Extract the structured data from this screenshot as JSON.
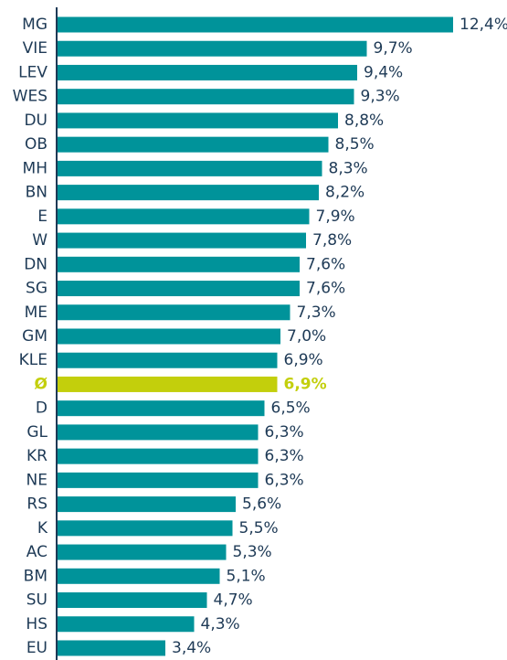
{
  "chart_data": {
    "type": "bar",
    "orientation": "horizontal",
    "categories": [
      "MG",
      "VIE",
      "LEV",
      "WES",
      "DU",
      "OB",
      "MH",
      "BN",
      "E",
      "W",
      "DN",
      "SG",
      "ME",
      "GM",
      "KLE",
      "Ø",
      "D",
      "GL",
      "KR",
      "NE",
      "RS",
      "K",
      "AC",
      "BM",
      "SU",
      "HS",
      "EU"
    ],
    "values": [
      12.4,
      9.7,
      9.4,
      9.3,
      8.8,
      8.5,
      8.3,
      8.2,
      7.9,
      7.8,
      7.6,
      7.6,
      7.3,
      7.0,
      6.9,
      6.9,
      6.5,
      6.3,
      6.3,
      6.3,
      5.6,
      5.5,
      5.3,
      5.1,
      4.7,
      4.3,
      3.4
    ],
    "value_labels": [
      "12,4%",
      "9,7%",
      "9,4%",
      "9,3%",
      "8,8%",
      "8,5%",
      "8,3%",
      "8,2%",
      "7,9%",
      "7,8%",
      "7,6%",
      "7,6%",
      "7,3%",
      "7,0%",
      "6,9%",
      "6,9%",
      "6,5%",
      "6,3%",
      "6,3%",
      "6,3%",
      "5,6%",
      "5,5%",
      "5,3%",
      "5,1%",
      "4,7%",
      "4,3%",
      "3,4%"
    ],
    "colors": [
      "#00939a",
      "#00939a",
      "#00939a",
      "#00939a",
      "#00939a",
      "#00939a",
      "#00939a",
      "#00939a",
      "#00939a",
      "#00939a",
      "#00939a",
      "#00939a",
      "#00939a",
      "#00939a",
      "#00939a",
      "#c3cf0c",
      "#00939a",
      "#00939a",
      "#00939a",
      "#00939a",
      "#00939a",
      "#00939a",
      "#00939a",
      "#00939a",
      "#00939a",
      "#00939a",
      "#00939a"
    ]
  }
}
